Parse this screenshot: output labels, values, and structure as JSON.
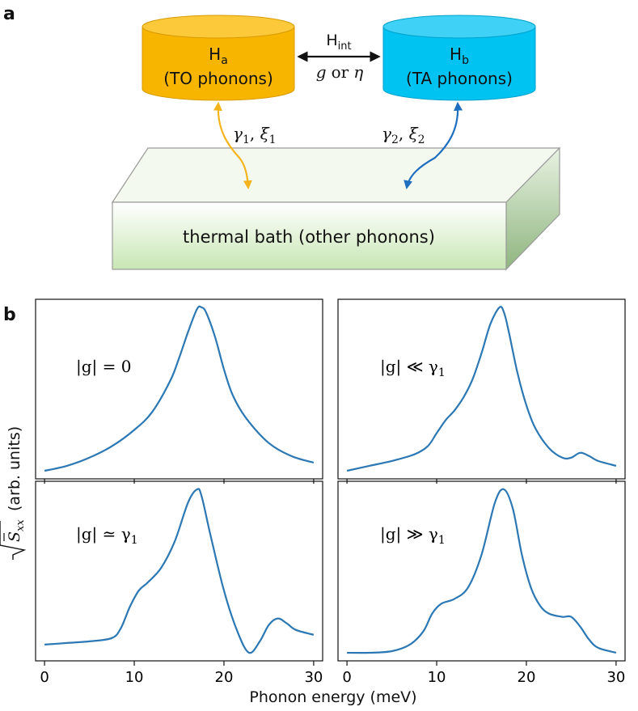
{
  "panel_a": {
    "label": "a",
    "ha": {
      "main": "H",
      "sub": "a",
      "desc": "(TO phonons)",
      "color": "#f8b500"
    },
    "hb": {
      "main": "H",
      "sub": "b",
      "desc": "(TA phonons)",
      "color": "#00c3f2"
    },
    "interaction": {
      "main": "H",
      "sub": "int",
      "coupling_g": "g",
      "coupling_or": "or",
      "coupling_eta": "η"
    },
    "bath_a": {
      "gamma": "γ",
      "gamma_sub": "1",
      "xi": "ξ",
      "xi_sub": "1",
      "arrow_color": "#f5b41d"
    },
    "bath_b": {
      "gamma": "γ",
      "gamma_sub": "2",
      "xi": "ξ",
      "xi_sub": "2",
      "arrow_color": "#1f6fc0"
    },
    "bath_label": "thermal bath (other phonons)"
  },
  "panel_b": {
    "label": "b",
    "ylabel": "(arb. units)",
    "ylabel_symbol": "S",
    "ylabel_sub": "xx",
    "xlabel": "Phonon energy (meV)",
    "line_color": "#2b78b4"
  },
  "chart_data": [
    {
      "type": "line",
      "title": "",
      "annotation": "|g| = 0",
      "xlim": [
        -1,
        31
      ],
      "x_ticks": [
        0,
        10,
        20,
        30
      ],
      "y_ticks": [],
      "x": [
        0,
        2.5,
        5,
        7.5,
        10,
        12,
        14,
        15,
        16,
        17,
        17.5,
        18,
        19,
        20,
        21,
        22.5,
        25,
        27.5,
        30
      ],
      "y": [
        0.0,
        0.03,
        0.08,
        0.15,
        0.25,
        0.36,
        0.55,
        0.69,
        0.85,
        0.99,
        1.0,
        0.97,
        0.82,
        0.62,
        0.46,
        0.32,
        0.17,
        0.09,
        0.05
      ]
    },
    {
      "type": "line",
      "title": "",
      "annotation": "|g| ≪ γ1",
      "xlim": [
        -1,
        31
      ],
      "x_ticks": [
        0,
        10,
        20,
        30
      ],
      "y_ticks": [],
      "x": [
        0,
        2.5,
        5,
        7.5,
        9,
        10,
        11,
        12,
        13,
        14,
        15,
        16,
        17,
        17.5,
        18,
        19,
        20,
        21,
        22.5,
        24,
        25,
        26,
        27,
        28,
        30
      ],
      "y": [
        0.0,
        0.03,
        0.06,
        0.1,
        0.15,
        0.23,
        0.31,
        0.37,
        0.45,
        0.56,
        0.72,
        0.9,
        1.0,
        0.97,
        0.86,
        0.6,
        0.4,
        0.26,
        0.14,
        0.08,
        0.08,
        0.11,
        0.09,
        0.06,
        0.03
      ]
    },
    {
      "type": "line",
      "title": "",
      "annotation": "|g| ≃ γ1",
      "xlim": [
        -1,
        31
      ],
      "x_ticks": [
        0,
        10,
        20,
        30
      ],
      "y_ticks": [],
      "x": [
        0,
        2.5,
        5,
        7.5,
        8.5,
        9.5,
        10.5,
        11.5,
        13,
        14.5,
        16,
        17,
        17.5,
        18.5,
        20,
        21.5,
        22.8,
        24,
        25,
        26,
        27,
        28,
        30
      ],
      "y": [
        0.05,
        0.06,
        0.07,
        0.09,
        0.15,
        0.28,
        0.38,
        0.43,
        0.52,
        0.68,
        0.92,
        1.0,
        0.96,
        0.72,
        0.38,
        0.13,
        0.0,
        0.07,
        0.17,
        0.21,
        0.18,
        0.14,
        0.11
      ]
    },
    {
      "type": "line",
      "title": "",
      "annotation": "|g| ≫ γ1",
      "xlim": [
        -1,
        31
      ],
      "x_ticks": [
        0,
        10,
        20,
        30
      ],
      "y_ticks": [],
      "x": [
        0,
        2.5,
        5,
        7,
        8.5,
        9.5,
        10.5,
        12,
        13.5,
        15,
        16.5,
        17.5,
        18.5,
        19.5,
        20.5,
        21.5,
        22.5,
        24,
        25,
        26,
        27,
        28,
        30
      ],
      "y": [
        0.0,
        0.0,
        0.01,
        0.05,
        0.13,
        0.24,
        0.3,
        0.33,
        0.4,
        0.6,
        0.92,
        1.0,
        0.88,
        0.6,
        0.4,
        0.29,
        0.24,
        0.22,
        0.22,
        0.16,
        0.08,
        0.03,
        0.0
      ]
    }
  ]
}
